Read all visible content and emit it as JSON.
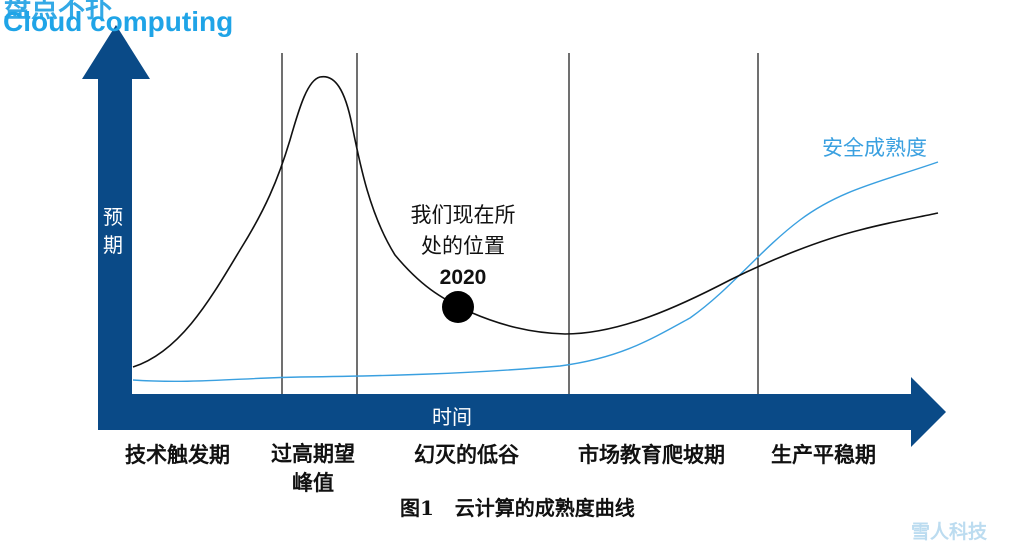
{
  "header": {
    "title_top_partial": "盘点不扑",
    "title": "Cloud computing"
  },
  "axes": {
    "y_label": "预期",
    "x_label": "时间",
    "axis_color": "#0a4a87"
  },
  "curves": {
    "hype_color": "#111111",
    "security_color": "#3aa0e0",
    "security_label": "安全成熟度"
  },
  "annotation": {
    "line1": "我们现在所",
    "line2": "处的位置",
    "year": "2020"
  },
  "stages": [
    {
      "label": "技术触发期"
    },
    {
      "label": "过高期望",
      "label2": "峰值"
    },
    {
      "label": "幻灭的低谷"
    },
    {
      "label": "市场教育爬坡期"
    },
    {
      "label": "生产平稳期"
    }
  ],
  "caption": "图1   云计算的成熟度曲线",
  "watermark": "雪人科技"
}
